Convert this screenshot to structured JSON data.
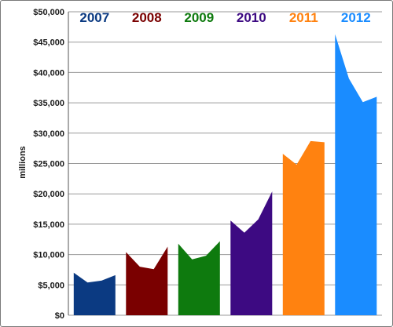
{
  "chart_data": {
    "type": "area",
    "ylabel": "millions",
    "ylim": [
      0,
      50000
    ],
    "yticks": [
      0,
      5000,
      10000,
      15000,
      20000,
      25000,
      30000,
      35000,
      40000,
      45000,
      50000
    ],
    "ytick_labels": [
      "$0",
      "$5,000",
      "$10,000",
      "$15,000",
      "$20,000",
      "$25,000",
      "$30,000",
      "$35,000",
      "$40,000",
      "$45,000",
      "$50,000"
    ],
    "grid": true,
    "series": [
      {
        "name": "2007",
        "color": "#0b3a82",
        "values": [
          7000,
          5400,
          5700,
          6600
        ]
      },
      {
        "name": "2008",
        "color": "#7a0000",
        "values": [
          10400,
          8000,
          7600,
          11300
        ]
      },
      {
        "name": "2009",
        "color": "#0e7a0e",
        "values": [
          11800,
          9200,
          9800,
          12200
        ]
      },
      {
        "name": "2010",
        "color": "#3d0a82",
        "values": [
          15600,
          13600,
          15800,
          20400
        ]
      },
      {
        "name": "2011",
        "color": "#ff8210",
        "values": [
          26600,
          24800,
          28700,
          28500
        ]
      },
      {
        "name": "2012",
        "color": "#1a8cff",
        "values": [
          46300,
          39000,
          35100,
          36000
        ]
      }
    ]
  }
}
